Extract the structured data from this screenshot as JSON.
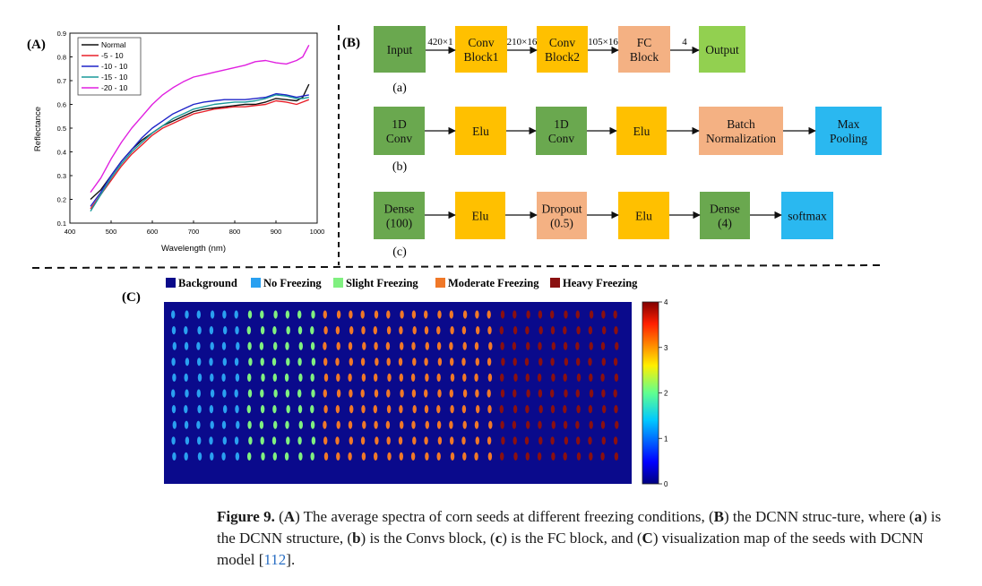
{
  "panel_a": {
    "label": "(A)",
    "xlabel": "Wavelength (nm)",
    "ylabel": "Reflectance",
    "chart_data": {
      "type": "line",
      "xlim": [
        400,
        1000
      ],
      "ylim": [
        0.1,
        0.9
      ],
      "xticks": [
        400,
        500,
        600,
        700,
        800,
        900,
        1000
      ],
      "yticks": [
        0.1,
        0.2,
        0.3,
        0.4,
        0.5,
        0.6,
        0.7,
        0.8,
        0.9
      ],
      "x": [
        450,
        475,
        500,
        525,
        550,
        575,
        600,
        625,
        650,
        675,
        700,
        725,
        750,
        775,
        800,
        825,
        850,
        875,
        900,
        925,
        950,
        965,
        980
      ],
      "series": [
        {
          "name": "Normal",
          "color": "#111111",
          "values": [
            0.2,
            0.24,
            0.3,
            0.36,
            0.41,
            0.45,
            0.48,
            0.51,
            0.53,
            0.55,
            0.57,
            0.58,
            0.585,
            0.59,
            0.595,
            0.6,
            0.6,
            0.61,
            0.625,
            0.62,
            0.615,
            0.63,
            0.685
          ]
        },
        {
          "name": "-5 - 10",
          "color": "#e8202a",
          "values": [
            0.16,
            0.22,
            0.28,
            0.34,
            0.39,
            0.43,
            0.47,
            0.5,
            0.52,
            0.54,
            0.56,
            0.57,
            0.58,
            0.585,
            0.59,
            0.59,
            0.595,
            0.6,
            0.615,
            0.61,
            0.6,
            0.61,
            0.62
          ]
        },
        {
          "name": "-10 - 10",
          "color": "#1f24c8",
          "values": [
            0.17,
            0.23,
            0.3,
            0.36,
            0.41,
            0.46,
            0.5,
            0.53,
            0.56,
            0.58,
            0.6,
            0.61,
            0.615,
            0.62,
            0.62,
            0.62,
            0.625,
            0.63,
            0.645,
            0.64,
            0.63,
            0.635,
            0.64
          ]
        },
        {
          "name": "-15 - 10",
          "color": "#1a9a9a",
          "values": [
            0.15,
            0.22,
            0.29,
            0.35,
            0.4,
            0.44,
            0.48,
            0.51,
            0.54,
            0.56,
            0.58,
            0.59,
            0.6,
            0.605,
            0.61,
            0.61,
            0.615,
            0.625,
            0.64,
            0.635,
            0.625,
            0.625,
            0.63
          ]
        },
        {
          "name": "-20 - 10",
          "color": "#e020e0",
          "values": [
            0.23,
            0.29,
            0.37,
            0.44,
            0.5,
            0.55,
            0.6,
            0.64,
            0.67,
            0.695,
            0.715,
            0.725,
            0.735,
            0.745,
            0.755,
            0.765,
            0.78,
            0.785,
            0.775,
            0.77,
            0.785,
            0.8,
            0.85
          ]
        }
      ]
    }
  },
  "panel_b": {
    "label": "(B)",
    "row_a": {
      "sub": "(a)",
      "boxes": [
        "Input",
        "Conv\nBlock1",
        "Conv\nBlock2",
        "FC\nBlock",
        "Output"
      ],
      "arrows": [
        "420×1",
        "210×16",
        "105×16",
        "4"
      ]
    },
    "row_b": {
      "sub": "(b)",
      "boxes": [
        "1D\nConv",
        "Elu",
        "1D\nConv",
        "Elu",
        "Batch\nNormalization",
        "Max\nPooling"
      ]
    },
    "row_c": {
      "sub": "(c)",
      "boxes": [
        "Dense\n(100)",
        "Elu",
        "Dropout\n(0.5)",
        "Elu",
        "Dense\n(4)",
        "softmax"
      ]
    }
  },
  "panel_c": {
    "label": "(C)",
    "legend": [
      {
        "label": "Background",
        "color": "#0a0a8a"
      },
      {
        "label": "No Freezing",
        "color": "#2aa0f0"
      },
      {
        "label": "Slight Freezing",
        "color": "#80f080"
      },
      {
        "label": "Moderate Freezing",
        "color": "#f07828"
      },
      {
        "label": "Heavy Freezing",
        "color": "#8a1010"
      }
    ],
    "colorbar_ticks": [
      "0",
      "1",
      "2",
      "3",
      "4"
    ],
    "seed_map": {
      "rows": 10,
      "column_classes": [
        1,
        1,
        1,
        1,
        1,
        1,
        2,
        2,
        2,
        2,
        2,
        2,
        3,
        3,
        3,
        3,
        3,
        3,
        3,
        3,
        3,
        3,
        3,
        3,
        3,
        3,
        4,
        4,
        4,
        4,
        4,
        4,
        4,
        4,
        4,
        4
      ]
    }
  },
  "caption": {
    "fig": "Figure 9.",
    "t1": " (",
    "A": "A",
    "t2": ") The average spectra of corn seeds at different freezing conditions, (",
    "B": "B",
    "t3": ") the DCNN struc-ture, where (",
    "a": "a",
    "t4": ") is the DCNN structure, (",
    "b": "b",
    "t5": ") is the Convs block, (",
    "c": "c",
    "t6": ") is the FC block, and (",
    "C": "C",
    "t7": ") visualization map of the seeds with DCNN model [",
    "ref": "112",
    "t8": "]."
  }
}
